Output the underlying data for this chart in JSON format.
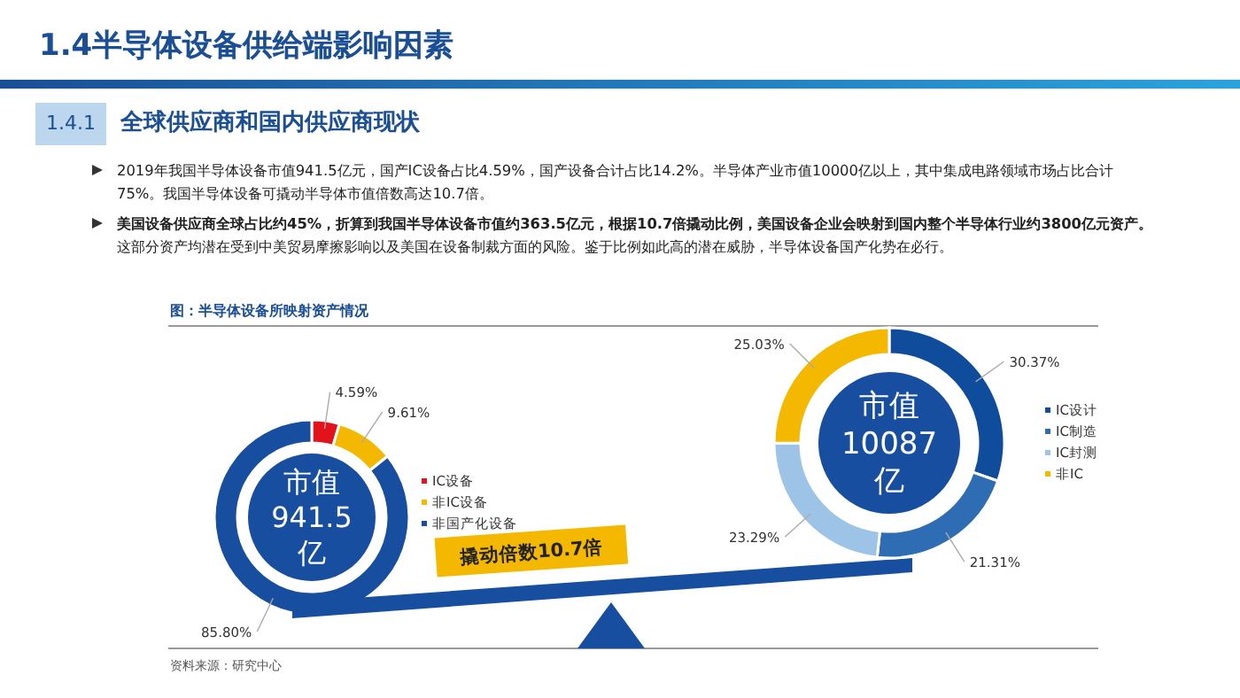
{
  "chart_data": [
    {
      "type": "other",
      "title": "1.4半导体设备供给端影响因素",
      "subtitle": "全球供应商和国内供应商现状",
      "annotations": [
        "1.4.1",
        "2019年我国半导体设备市值941.5亿元，国产IC设备占比4.59%，国产设备合计占比14.2%。半导体产业市值10000亿以上，其中集成电路领域市场占比合计75%。我国半导体设备可撬动半导体市值倍数高达10.7倍。",
        "美国设备供应商全球占比约45%，折算到我国半导体设备市值约363.5亿元，根据10.7倍撬动比例，美国设备企业会映射到国内整个半导体行业约3800亿元资产。",
        "这部分资产均潜在受到中美贸易摩擦影响以及美国在设备制裁方面的风险。鉴于比例如此高的潜在威胁，半导体设备国产化势在必行。"
      ]
    },
    {
      "type": "donut",
      "title": "图：半导体设备所映射资产情况",
      "categories": [
        "IC设备",
        "非IC设备",
        "非国产化设备"
      ],
      "values": [
        4.59,
        9.61,
        85.8
      ],
      "colors": [
        "#e3131b",
        "#f5b800",
        "#174ea0"
      ],
      "value_labels": [
        "4.59%",
        "9.61%",
        "85.80%"
      ],
      "legend": "right",
      "annotations": [
        "市值 941.5 亿",
        "撬动倍数10.7倍"
      ]
    },
    {
      "type": "donut",
      "categories": [
        "IC设计",
        "IC制造",
        "IC封测",
        "非IC"
      ],
      "values": [
        30.37,
        21.31,
        23.29,
        25.03
      ],
      "colors": [
        "#0f4c9c",
        "#2e6db4",
        "#9dc3e6",
        "#f5b800"
      ],
      "value_labels": [
        "30.37%",
        "21.31%",
        "23.29%",
        "25.03%"
      ],
      "legend": "right",
      "annotations": [
        "市值 10087 亿",
        "资料来源：研究中心"
      ]
    }
  ]
}
